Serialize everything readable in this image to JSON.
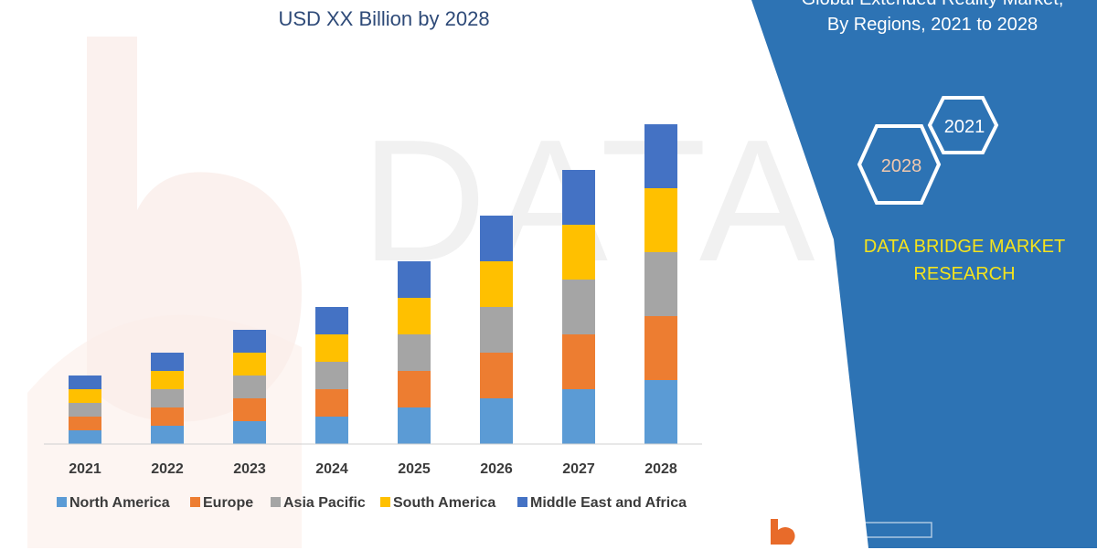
{
  "header": {
    "title_line2": "USD XX Billion by 2028"
  },
  "panel": {
    "title_line1": "Global Extended Reality Market,",
    "title_line2": "By Regions, 2021 to 2028",
    "hex_years": [
      "2021",
      "2028"
    ],
    "brand_line1": "DATA BRIDGE MARKET",
    "brand_line2": "RESEARCH",
    "colors": {
      "background": "#2d73b4",
      "brand_text": "#f5e31c"
    }
  },
  "watermark": {
    "text": "DATABRIDGE"
  },
  "chart_data": {
    "type": "bar",
    "stacked": true,
    "categories": [
      "2021",
      "2022",
      "2023",
      "2024",
      "2025",
      "2026",
      "2027",
      "2028"
    ],
    "series": [
      {
        "name": "North America",
        "color": "#5b9bd5",
        "values": [
          1.5,
          2.0,
          2.5,
          3.0,
          4.0,
          5.0,
          6.0,
          7.0
        ]
      },
      {
        "name": "Europe",
        "color": "#ed7d31",
        "values": [
          1.5,
          2.0,
          2.5,
          3.0,
          4.0,
          5.0,
          6.0,
          7.0
        ]
      },
      {
        "name": "Asia Pacific",
        "color": "#a5a5a5",
        "values": [
          1.5,
          2.0,
          2.5,
          3.0,
          4.0,
          5.0,
          6.0,
          7.0
        ]
      },
      {
        "name": "South America",
        "color": "#ffc000",
        "values": [
          1.5,
          2.0,
          2.5,
          3.0,
          4.0,
          5.0,
          6.0,
          7.0
        ]
      },
      {
        "name": "Middle East and Africa",
        "color": "#4472c4",
        "values": [
          1.5,
          2.0,
          2.5,
          3.0,
          4.0,
          5.0,
          6.0,
          7.0
        ]
      }
    ],
    "ylim": [
      0,
      35
    ],
    "grid": false,
    "legend_position": "bottom"
  }
}
